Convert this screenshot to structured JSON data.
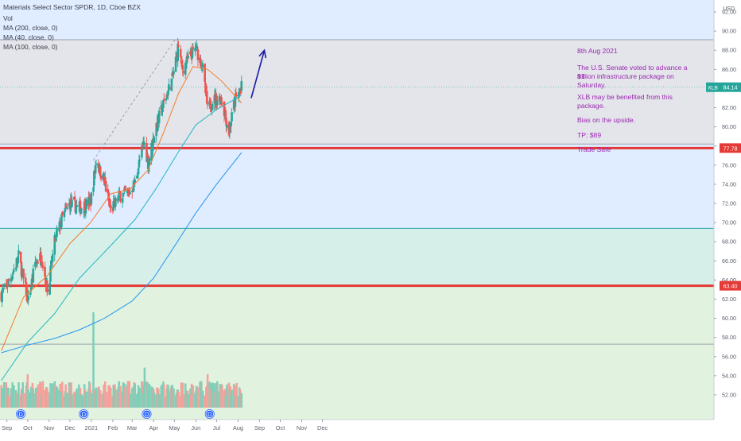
{
  "header": {
    "title": "Materials Select Sector SPDR, 1D, Cboe BZX",
    "indicators": [
      "Vol",
      "MA (200, close, 0)",
      "MA (40, close, 0)",
      "MA (100, close, 0)"
    ]
  },
  "annotation": {
    "date": "8th Aug 2021",
    "lines": [
      "The U.S. Senate voted to advance a $1",
      "trillion infrastructure package on",
      "Saturday.",
      "",
      "XLB may be benefited from this",
      "package.",
      "",
      "Bias on the upside.",
      "",
      "TP: $89",
      "",
      "Trade Safe"
    ]
  },
  "colors": {
    "up": "#26a69a",
    "down": "#ef5350",
    "ma40": "#f57c2a",
    "ma100": "#22b7c2",
    "ma200": "#2196f3",
    "level_line": "#e53935",
    "annotation": "#9c27b0",
    "arrow": "#1a1aa6",
    "zone_top": "#e0ecff",
    "zone_grey": "#e3e5ea",
    "zone_mid": "#d9ecf7",
    "zone_teal": "#d7efe9",
    "zone_green": "#e1f3df"
  },
  "chart_data": {
    "type": "candlestick",
    "symbol": "XLB",
    "timeframe": "1D",
    "currency": "USD",
    "x_tick_labels": [
      "Sep",
      "Oct",
      "Nov",
      "Dec",
      "2021",
      "Feb",
      "Mar",
      "Apr",
      "May",
      "Jun",
      "Jul",
      "Aug",
      "Sep",
      "Oct",
      "Nov",
      "Dec"
    ],
    "y_tick_labels": [
      "92.00",
      "90.00",
      "88.00",
      "86.00",
      "84.00",
      "82.00",
      "80.00",
      "78.00",
      "76.00",
      "74.00",
      "72.00",
      "70.00",
      "68.00",
      "66.00",
      "64.00",
      "62.00",
      "60.00",
      "58.00",
      "56.00",
      "54.00",
      "52.00"
    ],
    "ylim": [
      51,
      93
    ],
    "price_tags": [
      {
        "label": "XLB",
        "value": "84.14",
        "y": 84.14
      },
      {
        "value": "77.78",
        "y": 77.78
      },
      {
        "value": "63.40",
        "y": 63.4
      }
    ],
    "horizontal_levels": [
      {
        "name": "support-upper",
        "value": 77.78,
        "style": "thick-red"
      },
      {
        "name": "support-lower",
        "value": 63.4,
        "style": "thick-red"
      },
      {
        "name": "range-top",
        "value": 89.1,
        "style": "thin-grey"
      },
      {
        "name": "range-bottom",
        "value": 78.2,
        "style": "thin-grey"
      },
      {
        "name": "teal-level",
        "value": 69.4,
        "style": "thin-teal"
      },
      {
        "name": "grey-level",
        "value": 57.3,
        "style": "thin-grey"
      }
    ],
    "price_path": [
      [
        "2020-08-24",
        62.5
      ],
      [
        "2020-09-01",
        63.5
      ],
      [
        "2020-09-10",
        64.8
      ],
      [
        "2020-09-18",
        66.5
      ],
      [
        "2020-09-25",
        64.0
      ],
      [
        "2020-10-02",
        61.8
      ],
      [
        "2020-10-12",
        65.8
      ],
      [
        "2020-10-21",
        66.5
      ],
      [
        "2020-10-30",
        62.8
      ],
      [
        "2020-11-09",
        68.0
      ],
      [
        "2020-11-20",
        70.5
      ],
      [
        "2020-12-01",
        72.0
      ],
      [
        "2020-12-15",
        71.5
      ],
      [
        "2020-12-31",
        72.2
      ],
      [
        "2021-01-08",
        76.5
      ],
      [
        "2021-01-20",
        74.2
      ],
      [
        "2021-01-29",
        71.2
      ],
      [
        "2021-02-10",
        72.8
      ],
      [
        "2021-02-26",
        73.2
      ],
      [
        "2021-03-05",
        74.2
      ],
      [
        "2021-03-18",
        78.5
      ],
      [
        "2021-03-24",
        76.2
      ],
      [
        "2021-04-05",
        80.2
      ],
      [
        "2021-04-16",
        82.5
      ],
      [
        "2021-04-28",
        85.0
      ],
      [
        "2021-05-07",
        88.6
      ],
      [
        "2021-05-12",
        86.0
      ],
      [
        "2021-05-19",
        86.8
      ],
      [
        "2021-06-01",
        88.2
      ],
      [
        "2021-06-10",
        86.5
      ],
      [
        "2021-06-18",
        81.8
      ],
      [
        "2021-06-25",
        82.8
      ],
      [
        "2021-07-08",
        83.0
      ],
      [
        "2021-07-19",
        79.4
      ],
      [
        "2021-07-27",
        82.7
      ],
      [
        "2021-08-06",
        84.14
      ]
    ],
    "ma_series": [
      {
        "indicator": "MA (40, close, 0)",
        "color": "#f57c2a",
        "points": [
          [
            "2020-08-24",
            56.6
          ],
          [
            "2020-09-25",
            62.2
          ],
          [
            "2020-10-30",
            64.5
          ],
          [
            "2020-12-01",
            67.8
          ],
          [
            "2020-12-31",
            70.0
          ],
          [
            "2021-01-29",
            73.0
          ],
          [
            "2021-02-26",
            73.5
          ],
          [
            "2021-03-24",
            75.5
          ],
          [
            "2021-04-16",
            79.5
          ],
          [
            "2021-05-07",
            83.5
          ],
          [
            "2021-05-28",
            86.3
          ],
          [
            "2021-06-18",
            86.0
          ],
          [
            "2021-07-08",
            84.8
          ],
          [
            "2021-08-06",
            82.5
          ]
        ]
      },
      {
        "indicator": "MA (100, close, 0)",
        "color": "#22b7c2",
        "points": [
          [
            "2020-08-24",
            53.5
          ],
          [
            "2020-10-01",
            57.5
          ],
          [
            "2020-11-09",
            60.5
          ],
          [
            "2020-12-15",
            64.2
          ],
          [
            "2021-01-29",
            67.6
          ],
          [
            "2021-03-05",
            70.3
          ],
          [
            "2021-04-05",
            73.6
          ],
          [
            "2021-05-07",
            77.4
          ],
          [
            "2021-06-01",
            80.2
          ],
          [
            "2021-07-01",
            81.8
          ],
          [
            "2021-08-06",
            83.3
          ]
        ]
      },
      {
        "indicator": "MA (200, close, 0)",
        "color": "#2196f3",
        "points": [
          [
            "2020-08-24",
            56.4
          ],
          [
            "2020-10-01",
            57.2
          ],
          [
            "2020-11-09",
            57.9
          ],
          [
            "2020-12-15",
            58.8
          ],
          [
            "2021-01-20",
            60.0
          ],
          [
            "2021-03-01",
            61.8
          ],
          [
            "2021-04-01",
            64.2
          ],
          [
            "2021-05-01",
            67.5
          ],
          [
            "2021-06-01",
            71.0
          ],
          [
            "2021-07-01",
            74.0
          ],
          [
            "2021-08-06",
            77.3
          ]
        ]
      }
    ],
    "volume": {
      "peaks": [
        {
          "date": "2021-01-04",
          "level": 1.0
        },
        {
          "date": "2021-03-19",
          "level": 0.42
        },
        {
          "date": "2020-10-01",
          "level": 0.35
        },
        {
          "date": "2021-06-18",
          "level": 0.35
        }
      ]
    },
    "dividend_markers": [
      "2020-09-21",
      "2020-12-21",
      "2021-03-22",
      "2021-06-21"
    ],
    "dividend_label": "D",
    "trend_projection": {
      "from": [
        "2021-01-04",
        76.5
      ],
      "to": [
        "2021-05-03",
        89.2
      ],
      "style": "dashed"
    },
    "forecast_arrow": {
      "from": [
        "2021-08-20",
        83.0
      ],
      "to": [
        "2021-09-08",
        88.0
      ]
    },
    "grid": false,
    "legend": "top-left"
  }
}
